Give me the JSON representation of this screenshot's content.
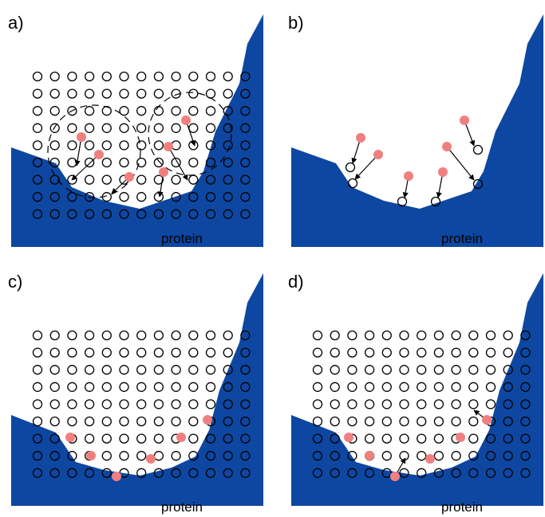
{
  "panels": [
    {
      "label": "a)",
      "region": "protein"
    },
    {
      "label": "b)",
      "region": "protein"
    },
    {
      "label": "c)",
      "region": "protein"
    },
    {
      "label": "d)",
      "region": "protein"
    }
  ]
}
